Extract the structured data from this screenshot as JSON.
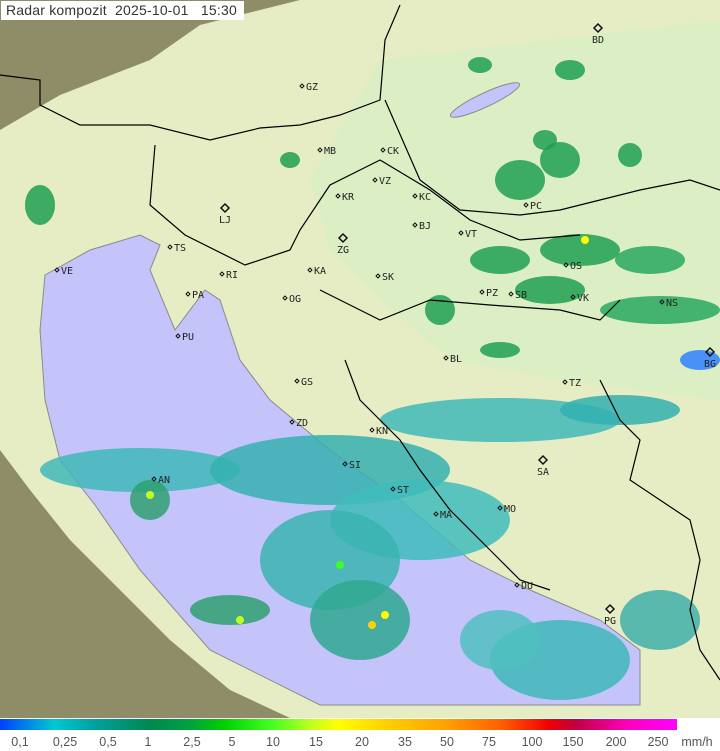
{
  "header": {
    "title": "Radar kompozit  2025-10-01   15:30"
  },
  "legend": {
    "values": [
      "0,1",
      "0,25",
      "0,5",
      "1",
      "2,5",
      "5",
      "10",
      "15",
      "20",
      "35",
      "50",
      "75",
      "100",
      "150",
      "200",
      "250"
    ],
    "unit": "mm/h",
    "colors": [
      "#0040ff",
      "#00c8d0",
      "#008850",
      "#00d000",
      "#ffff00",
      "#ffa000",
      "#f00000",
      "#ff00ff"
    ]
  },
  "map": {
    "colors": {
      "sea": "#c4c4fa",
      "land": "#dff0c0",
      "outside": "#8f8c68",
      "border": "#000000",
      "coast": "#8a8a8a"
    },
    "cities": [
      "BD",
      "GZ",
      "MB",
      "CK",
      "VZ",
      "KR",
      "KC",
      "LJ",
      "ZG",
      "BJ",
      "VT",
      "TS",
      "RI",
      "KA",
      "SK",
      "VE",
      "PA",
      "OG",
      "PU",
      "PC",
      "OS",
      "SB",
      "PZ",
      "VK",
      "NS",
      "BG",
      "BL",
      "TZ",
      "RI",
      "GS",
      "ZD",
      "KN",
      "SI",
      "ST",
      "MA",
      "AN",
      "SA",
      "MO",
      "DU",
      "PG"
    ]
  }
}
